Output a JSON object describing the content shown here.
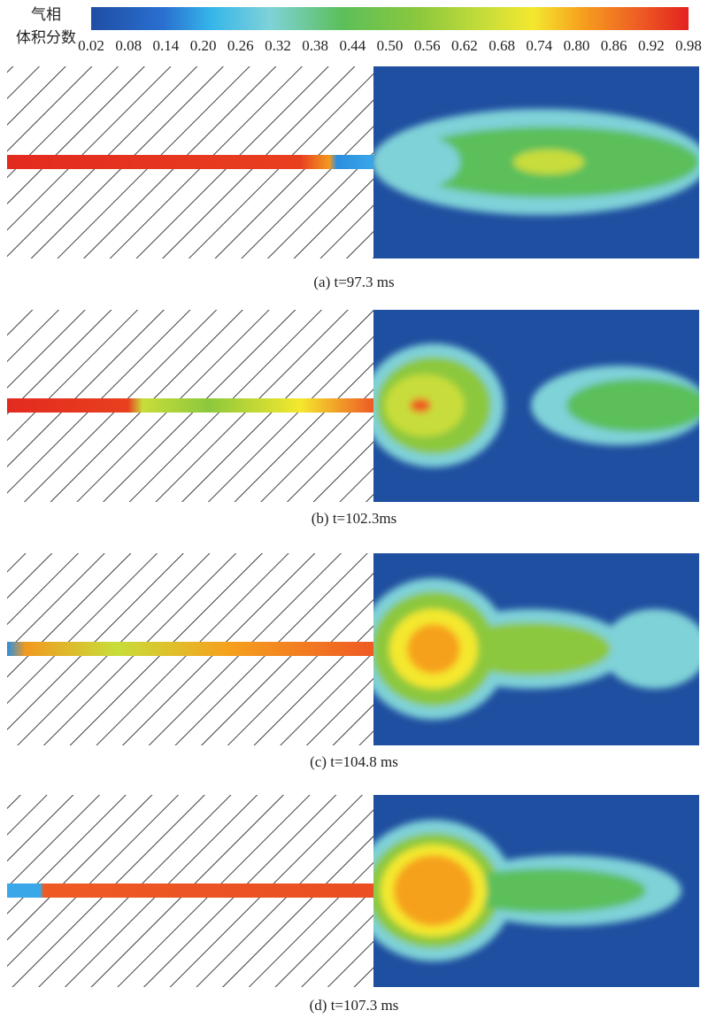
{
  "legend": {
    "title_lines": [
      "气相",
      "体积分数"
    ],
    "ticks": [
      "0.02",
      "0.08",
      "0.14",
      "0.20",
      "0.26",
      "0.32",
      "0.38",
      "0.44",
      "0.50",
      "0.56",
      "0.62",
      "0.68",
      "0.74",
      "0.80",
      "0.86",
      "0.92",
      "0.98"
    ]
  },
  "panels": [
    {
      "caption": "(a) t=97.3 ms"
    },
    {
      "caption": "(b) t=102.3ms"
    },
    {
      "caption": "(c) t=104.8 ms"
    },
    {
      "caption": "(d) t=107.3 ms"
    }
  ]
}
